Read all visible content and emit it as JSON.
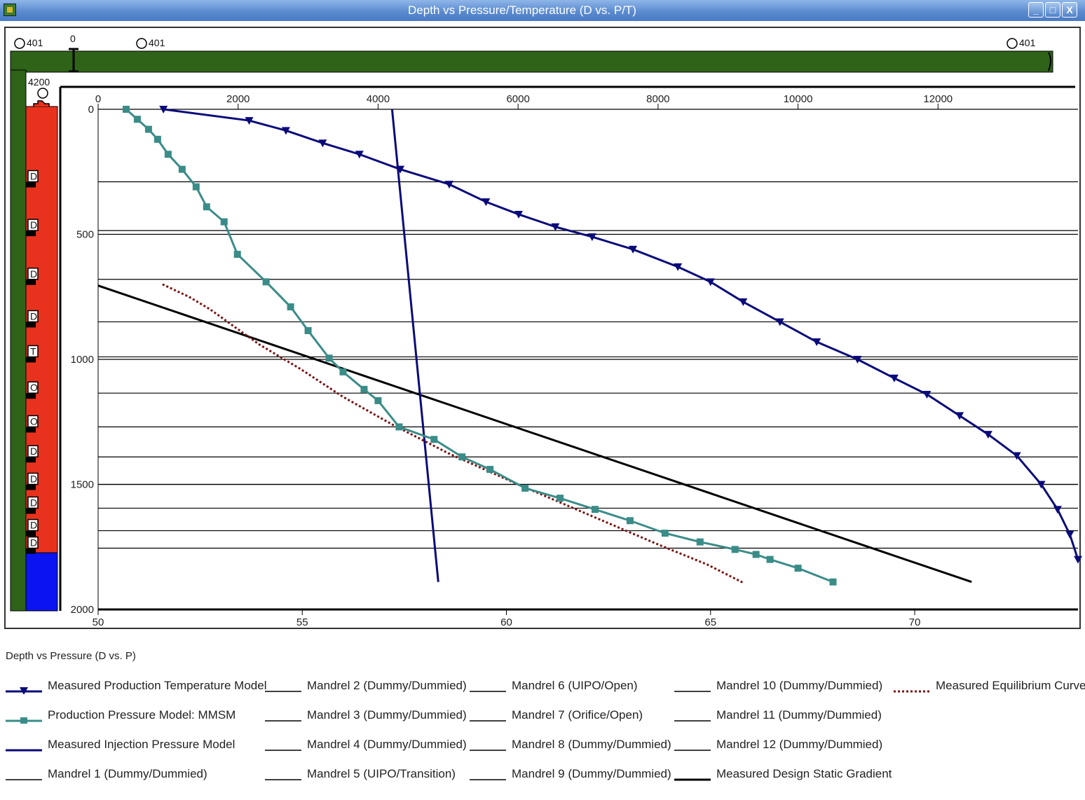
{
  "window": {
    "title": "Depth vs Pressure/Temperature (D vs. P/T)",
    "buttons": {
      "minimize": "_",
      "maximize": "□",
      "close": "X"
    }
  },
  "wellbore": {
    "top_labels": [
      "401",
      "0",
      "401",
      "401"
    ],
    "depth_label": "4200",
    "valves": [
      "D",
      "D",
      "D",
      "D",
      "T",
      "O",
      "O",
      "D",
      "D",
      "D",
      "D",
      "D"
    ],
    "colors": {
      "tubing": "#2e6318",
      "casing": "#e8321e",
      "fluid": "#0a14f0"
    }
  },
  "legend": {
    "title": "Depth vs Pressure (D vs. P)",
    "items": [
      {
        "label": "Measured Production Temperature Model",
        "style": "triangle",
        "color": "#0a0a7a"
      },
      {
        "label": "Production Pressure Model: MMSM",
        "style": "square",
        "color": "#3a8c88"
      },
      {
        "label": "Measured Injection Pressure Model",
        "style": "line",
        "color": "#0a0a7a"
      },
      {
        "label": "Mandrel 1 (Dummy/Dummied)",
        "style": "thin",
        "color": "#000000"
      },
      {
        "label": "Mandrel 2 (Dummy/Dummied)",
        "style": "thin",
        "color": "#000000"
      },
      {
        "label": "Mandrel 3 (Dummy/Dummied)",
        "style": "thin",
        "color": "#000000"
      },
      {
        "label": "Mandrel 4 (Dummy/Dummied)",
        "style": "thin",
        "color": "#000000"
      },
      {
        "label": "Mandrel 5 (UIPO/Transition)",
        "style": "thin",
        "color": "#000000"
      },
      {
        "label": "Mandrel 6 (UIPO/Open)",
        "style": "thin",
        "color": "#000000"
      },
      {
        "label": "Mandrel 7 (Orifice/Open)",
        "style": "thin",
        "color": "#000000"
      },
      {
        "label": "Mandrel 8 (Dummy/Dummied)",
        "style": "thin",
        "color": "#000000"
      },
      {
        "label": "Mandrel 9 (Dummy/Dummied)",
        "style": "thin",
        "color": "#000000"
      },
      {
        "label": "Mandrel 10 (Dummy/Dummied)",
        "style": "thin",
        "color": "#000000"
      },
      {
        "label": "Mandrel 11 (Dummy/Dummied)",
        "style": "thin",
        "color": "#000000"
      },
      {
        "label": "Mandrel 12 (Dummy/Dummied)",
        "style": "thin",
        "color": "#000000"
      },
      {
        "label": "Measured Design Static Gradient",
        "style": "thick",
        "color": "#000000"
      },
      {
        "label": "Measured Equilibrium Curve",
        "style": "dotted",
        "color": "#7a1010"
      }
    ]
  },
  "chart_data": {
    "type": "line",
    "x_top": {
      "ticks": [
        0,
        2000,
        4000,
        6000,
        8000,
        10000,
        12000
      ],
      "lim": [
        0,
        14000
      ]
    },
    "x_bottom": {
      "ticks": [
        50,
        55,
        60,
        65,
        70
      ],
      "lim": [
        50,
        74
      ]
    },
    "y": {
      "ticks": [
        0,
        500,
        1000,
        1500,
        2000
      ],
      "lim": [
        0,
        2000
      ],
      "inverted": true
    },
    "mandrel_depths": [
      290,
      485,
      680,
      850,
      990,
      1135,
      1270,
      1390,
      1500,
      1595,
      1685,
      1755
    ],
    "series": [
      {
        "name": "Measured Production Temperature Model",
        "axis": "bottom",
        "x": [
          51.6,
          53.7,
          54.6,
          55.5,
          56.4,
          57.4,
          58.6,
          59.5,
          60.3,
          61.2,
          62.1,
          63.1,
          64.2,
          65.0,
          65.8,
          66.7,
          67.6,
          68.6,
          69.5,
          70.3,
          71.1,
          71.8,
          72.5,
          73.1,
          73.5,
          73.8,
          74.0
        ],
        "y": [
          0,
          45,
          85,
          135,
          180,
          240,
          300,
          370,
          420,
          470,
          510,
          560,
          630,
          690,
          770,
          850,
          930,
          1000,
          1075,
          1140,
          1225,
          1300,
          1385,
          1500,
          1600,
          1700,
          1800
        ]
      },
      {
        "name": "Production Pressure Model: MMSM",
        "axis": "top",
        "x": [
          400,
          560,
          720,
          850,
          1000,
          1200,
          1400,
          1550,
          1800,
          1990,
          2400,
          2750,
          3000,
          3300,
          3500,
          3800,
          4000,
          4300,
          4800,
          5200,
          5600,
          6100,
          6600,
          7100,
          7600,
          8100,
          8600,
          9100,
          9400,
          9600,
          10000,
          10500
        ],
        "y": [
          0,
          40,
          80,
          120,
          180,
          240,
          310,
          390,
          450,
          580,
          690,
          790,
          885,
          995,
          1050,
          1120,
          1165,
          1270,
          1320,
          1390,
          1440,
          1515,
          1555,
          1600,
          1645,
          1695,
          1730,
          1760,
          1780,
          1800,
          1835,
          1890
        ]
      },
      {
        "name": "Measured Injection Pressure Model",
        "axis": "top",
        "x": [
          4200,
          4860
        ],
        "y": [
          0,
          1890
        ]
      },
      {
        "name": "Measured Design Static Gradient",
        "axis": "top",
        "x": [
          0,
          12480
        ],
        "y": [
          705,
          1890
        ]
      },
      {
        "name": "Measured Equilibrium Curve",
        "axis": "top",
        "x": [
          920,
          1300,
          1600,
          1900,
          2300,
          2900,
          3500,
          4200,
          5000,
          6000,
          7000,
          8000,
          8700,
          9230
        ],
        "y": [
          700,
          750,
          800,
          860,
          940,
          1040,
          1150,
          1260,
          1375,
          1500,
          1620,
          1740,
          1820,
          1895
        ]
      }
    ]
  }
}
